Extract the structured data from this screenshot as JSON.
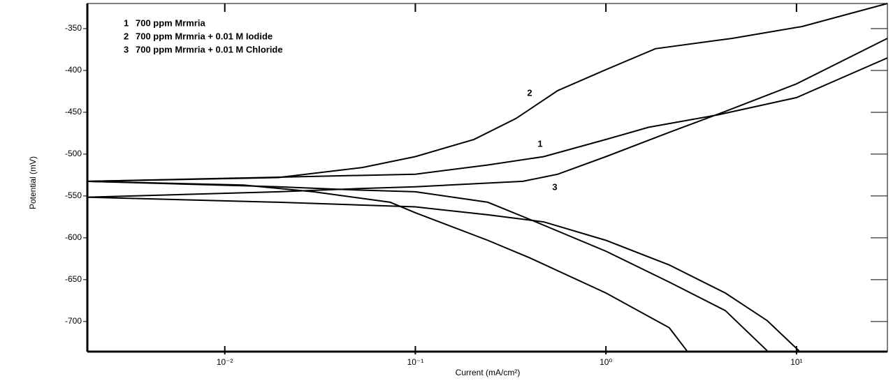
{
  "chart_data": {
    "type": "line",
    "x_label": "Current (mA/cm²)",
    "y_label": "Potential (mV)",
    "log_x": true,
    "xlim": [
      0.0019,
      30
    ],
    "ylim": [
      -736,
      -320
    ],
    "xticks": [
      {
        "value": 0.01,
        "label": "10⁻²"
      },
      {
        "value": 0.1,
        "label": "10⁻¹"
      },
      {
        "value": 1,
        "label": "10⁰"
      },
      {
        "value": 10,
        "label": "10¹"
      }
    ],
    "yticks": [
      -700,
      -650,
      -600,
      -550,
      -500,
      -450,
      -400,
      -350
    ],
    "color": "#000000",
    "series": [
      {
        "label": "1",
        "name": "700 ppm Mrmria",
        "branches": [
          {
            "x": [
              0.0019,
              0.1,
              0.24,
              0.472,
              1,
              1.67,
              3.89,
              10,
              30
            ],
            "values": [
              -532.5,
              -524,
              -513,
              -503,
              -482.5,
              -468,
              -453,
              -432.5,
              -385
            ]
          },
          {
            "x": [
              0.0019,
              0.01256,
              0.0292,
              0.0738,
              0.1,
              0.24,
              0.399,
              1,
              2.15,
              2.66
            ],
            "values": [
              -532.5,
              -537,
              -545,
              -557.5,
              -570,
              -603,
              -624,
              -666,
              -707.5,
              -735
            ]
          }
        ]
      },
      {
        "label": "2",
        "name": "700 ppm Mrmria + 0.01 M Iodide",
        "branches": [
          {
            "x": [
              0.0019,
              0.0191,
              0.0527,
              0.1,
              0.203,
              0.337,
              0.559,
              1,
              1.82,
              4.6,
              10.7,
              30
            ],
            "values": [
              -532.5,
              -528,
              -516,
              -503,
              -482.5,
              -457.5,
              -424,
              -399,
              -374,
              -361.7,
              -347.5,
              -320
            ]
          },
          {
            "x": [
              0.0019,
              0.0191,
              0.0445,
              0.1,
              0.24,
              0.399,
              1,
              2.15,
              4.23,
              7.02
            ],
            "values": [
              -532.5,
              -539,
              -542.5,
              -545,
              -557.5,
              -578,
              -616,
              -653,
              -687,
              -735
            ]
          }
        ]
      },
      {
        "label": "3",
        "name": "700 ppm Mrmria + 0.01 M Chloride",
        "branches": [
          {
            "x": [
              0.0019,
              0.0191,
              0.0527,
              0.1,
              0.367,
              0.559,
              1,
              2.15,
              4.23,
              10,
              30
            ],
            "values": [
              -551.5,
              -545,
              -541,
              -539,
              -532.5,
              -524,
              -503,
              -474,
              -449,
              -416,
              -361.7
            ]
          },
          {
            "x": [
              0.0019,
              0.0191,
              0.1,
              0.24,
              0.472,
              1,
              2.15,
              4.23,
              7.02,
              10.3
            ],
            "values": [
              -551.5,
              -557.5,
              -563,
              -572.5,
              -581,
              -603,
              -632.5,
              -666,
              -699,
              -735
            ]
          }
        ]
      }
    ]
  }
}
